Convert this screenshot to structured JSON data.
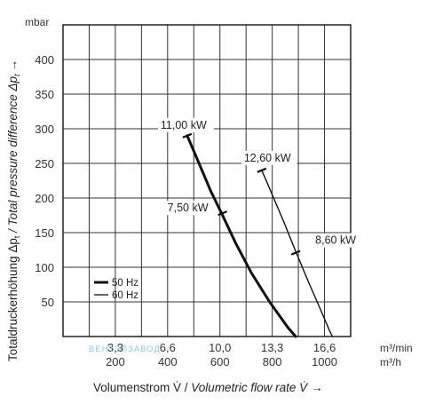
{
  "chart_data": {
    "type": "line",
    "y_unit": "mbar",
    "y_ticks": [
      "50",
      "100",
      "150",
      "200",
      "250",
      "300",
      "350",
      "400"
    ],
    "ylim": [
      0,
      450
    ],
    "x_ticks_m3min": [
      "3,3",
      "6,6",
      "10,0",
      "13,3",
      "16,6"
    ],
    "x_ticks_m3h": [
      "200",
      "400",
      "600",
      "800",
      "1000"
    ],
    "x_unit_m3min": "m³/min",
    "x_unit_m3h": "m³/h",
    "xlim_m3h": [
      0,
      1100
    ],
    "xlabel_plain": "Volumenstrom V̇ / ",
    "xlabel_italic": "Volumetric flow rate V̇",
    "xlabel_arrow": "→",
    "ylabel_plain": "Totaldruckerhöhung Δp",
    "ylabel_italic": " / Total pressure difference Δp",
    "ylabel_sub": "t",
    "ylabel_arrow": "→",
    "series": [
      {
        "name": "50 Hz",
        "stroke_width": 3,
        "points": [
          [
            475,
            290
          ],
          [
            520,
            250
          ],
          [
            565,
            210
          ],
          [
            610,
            175
          ],
          [
            660,
            135
          ],
          [
            720,
            92
          ],
          [
            790,
            50
          ],
          [
            860,
            13
          ],
          [
            890,
            0
          ]
        ]
      },
      {
        "name": "60 Hz",
        "stroke_width": 1.4,
        "points": [
          [
            760,
            240
          ],
          [
            800,
            205
          ],
          [
            845,
            165
          ],
          [
            890,
            123
          ],
          [
            935,
            82
          ],
          [
            980,
            43
          ],
          [
            1020,
            8
          ],
          [
            1030,
            0
          ]
        ]
      }
    ],
    "annotations": [
      {
        "label": "11,00 kW",
        "series": "50 Hz",
        "x": 475,
        "y": 290
      },
      {
        "label": "7,50 kW",
        "series": "50 Hz",
        "x": 610,
        "y": 178
      },
      {
        "label": "12,60 kW",
        "series": "60 Hz",
        "x": 760,
        "y": 240
      },
      {
        "label": "8,60 kW",
        "series": "60 Hz",
        "x": 890,
        "y": 121
      }
    ],
    "legend": [
      "50 Hz",
      "60 Hz"
    ],
    "legend_position": "bottom-left",
    "grid": true
  },
  "watermark": "ВЕНТЭЛЗАВОД"
}
